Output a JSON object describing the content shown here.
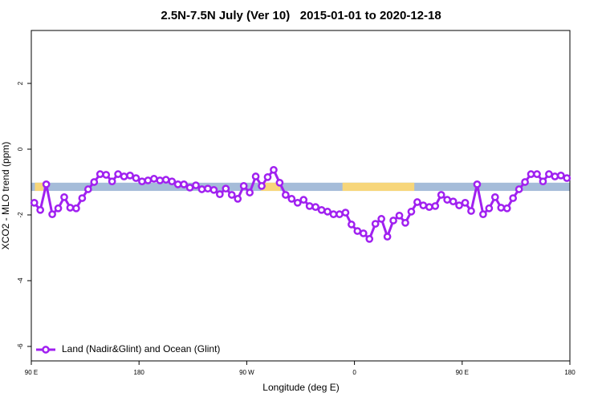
{
  "chart_data": {
    "type": "line",
    "title": "2.5N-7.5N July (Ver 10)   2015-01-01 to 2020-12-18",
    "x_label": "Longitude (deg E)",
    "y_label": "XCO2 - MLO trend (ppm)",
    "xlim": [
      90,
      540
    ],
    "ylim": [
      -6.44,
      3.61
    ],
    "xticks": [
      {
        "value": 90,
        "label": "90 E"
      },
      {
        "value": 180,
        "label": "180"
      },
      {
        "value": 270,
        "label": "90 W"
      },
      {
        "value": 360,
        "label": "0"
      },
      {
        "value": 450,
        "label": "90 E"
      },
      {
        "value": 540,
        "label": "180"
      }
    ],
    "yticks": [
      2,
      0,
      -2,
      -4,
      -6
    ],
    "legend": "bottom-left",
    "band_ylim": [
      -1.27,
      -1.02
    ],
    "band_color": "#a5bcd9",
    "land_color": "#f7d67a",
    "land_spans": [
      [
        93,
        100
      ],
      [
        282,
        298
      ],
      [
        350,
        410
      ]
    ],
    "x": [
      92.5,
      97.5,
      102.5,
      107.5,
      112.5,
      117.5,
      122.5,
      127.5,
      132.5,
      137.5,
      142.5,
      147.5,
      152.5,
      157.5,
      162.5,
      167.5,
      172.5,
      177.5,
      182.5,
      187.5,
      192.5,
      197.5,
      202.5,
      207.5,
      212.5,
      217.5,
      222.5,
      227.5,
      232.5,
      237.5,
      242.5,
      247.5,
      252.5,
      257.5,
      262.5,
      267.5,
      272.5,
      277.5,
      282.5,
      287.5,
      292.5,
      297.5,
      302.5,
      307.5,
      312.5,
      317.5,
      322.5,
      327.5,
      332.5,
      337.5,
      342.5,
      347.5,
      352.5,
      357.5,
      362.5,
      367.5,
      372.5,
      377.5,
      382.5,
      387.5,
      392.5,
      397.5,
      402.5,
      407.5,
      412.5,
      417.5,
      422.5,
      427.5,
      432.5,
      437.5,
      442.5,
      447.5,
      452.5,
      457.5,
      462.5,
      467.5,
      472.5,
      477.5,
      482.5,
      487.5,
      492.5,
      497.5,
      502.5,
      507.5,
      512.5,
      517.5,
      522.5,
      527.5,
      532.5,
      537.5
    ],
    "series": [
      {
        "name": "Land (Nadir&Glint) and Ocean (Glint)",
        "color": "#a020f0",
        "values": [
          -1.63,
          -1.85,
          -1.07,
          -1.98,
          -1.8,
          -1.46,
          -1.78,
          -1.8,
          -1.49,
          -1.22,
          -1.0,
          -0.76,
          -0.78,
          -0.98,
          -0.76,
          -0.83,
          -0.8,
          -0.88,
          -0.98,
          -0.95,
          -0.9,
          -0.95,
          -0.93,
          -0.98,
          -1.07,
          -1.07,
          -1.17,
          -1.1,
          -1.22,
          -1.2,
          -1.24,
          -1.37,
          -1.2,
          -1.39,
          -1.51,
          -1.12,
          -1.32,
          -0.83,
          -1.12,
          -0.85,
          -0.63,
          -1.02,
          -1.39,
          -1.51,
          -1.63,
          -1.54,
          -1.73,
          -1.76,
          -1.85,
          -1.9,
          -1.98,
          -1.98,
          -1.93,
          -2.29,
          -2.49,
          -2.56,
          -2.73,
          -2.27,
          -2.12,
          -2.66,
          -2.17,
          -2.02,
          -2.24,
          -1.9,
          -1.61,
          -1.71,
          -1.76,
          -1.73,
          -1.39,
          -1.54,
          -1.59,
          -1.71,
          -1.63,
          -1.88,
          -1.07,
          -1.98,
          -1.8,
          -1.46,
          -1.78,
          -1.8,
          -1.49,
          -1.22,
          -1.0,
          -0.76,
          -0.76,
          -0.98,
          -0.76,
          -0.83,
          -0.8,
          -0.88
        ]
      }
    ]
  }
}
